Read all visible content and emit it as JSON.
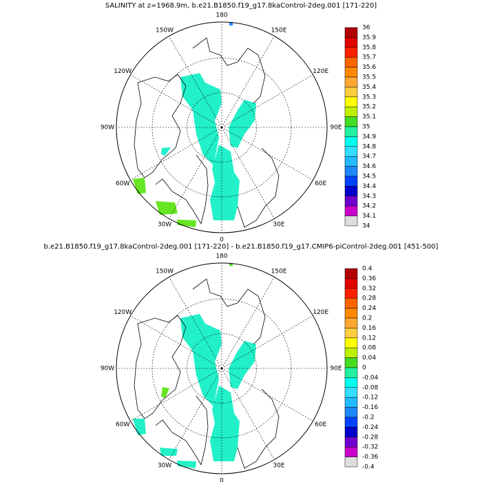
{
  "maps": [
    {
      "title": "SALINITY at z=1968.9m, b.e21.B1850.f19_g17.8kaControl-2deg.001 [171-220]",
      "lon_labels": [
        "0",
        "30E",
        "60E",
        "90E",
        "120E",
        "150E",
        "180",
        "150W",
        "120W",
        "90W",
        "60W",
        "30W"
      ],
      "colorbar": {
        "labels": [
          36,
          35.9,
          35.8,
          35.7,
          35.6,
          35.5,
          35.4,
          35.3,
          35.2,
          35.1,
          35,
          34.9,
          34.8,
          34.7,
          34.6,
          34.5,
          34.4,
          34.3,
          34.2,
          34.1,
          34
        ],
        "colors": [
          "#b00000",
          "#e00000",
          "#ff2000",
          "#ff6400",
          "#ff8800",
          "#ffa830",
          "#ffcc40",
          "#ffff00",
          "#bff000",
          "#44dd22",
          "#22f0a0",
          "#00ffee",
          "#33ddff",
          "#22bbff",
          "#1e88ff",
          "#0044ff",
          "#0000cc",
          "#7000cc",
          "#cc00cc",
          "#dddddd",
          "#777777"
        ]
      }
    },
    {
      "title": "b.e21.B1850.f19_g17.8kaControl-2deg.001 [171-220] - b.e21.B1850.f19_g17.CMIP6-piControl-2deg.001 [451-500]",
      "lon_labels": [
        "0",
        "30E",
        "60E",
        "90E",
        "120E",
        "150E",
        "180",
        "150W",
        "120W",
        "90W",
        "60W",
        "30W"
      ],
      "colorbar": {
        "labels": [
          0.4,
          0.36,
          0.32,
          0.28,
          0.24,
          0.2,
          0.16,
          0.12,
          0.08,
          0.04,
          0,
          -0.04,
          -0.08,
          -0.12,
          -0.16,
          -0.2,
          -0.24,
          -0.28,
          -0.32,
          -0.36,
          -0.4
        ],
        "colors": [
          "#b00000",
          "#e00000",
          "#ff2000",
          "#ff6400",
          "#ff8800",
          "#ffa830",
          "#ffcc40",
          "#ffff00",
          "#bff000",
          "#44dd22",
          "#22f0a0",
          "#00ffee",
          "#33ddff",
          "#22bbff",
          "#1e88ff",
          "#0044ff",
          "#0000cc",
          "#7000cc",
          "#cc00cc",
          "#dddddd",
          "#777777"
        ]
      }
    }
  ]
}
